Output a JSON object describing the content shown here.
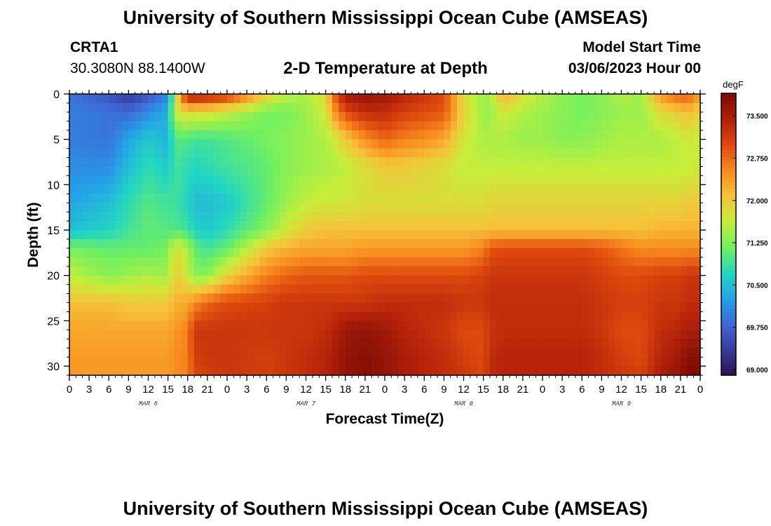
{
  "header": {
    "title": "University of Southern Mississippi Ocean Cube (AMSEAS)",
    "station_id": "CRTA1",
    "station_coords": "30.3080N  88.1400W",
    "subtitle": "2-D Temperature at Depth",
    "start_label": "Model Start Time",
    "start_value": "03/06/2023 Hour 00"
  },
  "footer": {
    "title": "University of Southern Mississippi Ocean Cube (AMSEAS)"
  },
  "chart_data": {
    "type": "heatmap",
    "title": "2-D Temperature at Depth",
    "xlabel": "Forecast Time(Z)",
    "ylabel": "Depth (ft)",
    "x_tick_labels": [
      "0",
      "3",
      "6",
      "9",
      "12",
      "15",
      "18",
      "21",
      "0",
      "3",
      "6",
      "9",
      "12",
      "15",
      "18",
      "21",
      "0",
      "3",
      "6",
      "9",
      "12",
      "15",
      "18",
      "21",
      "0",
      "3",
      "6",
      "9",
      "12",
      "15",
      "18",
      "21",
      "0"
    ],
    "date_labels": [
      "MAR 6",
      "MAR 7",
      "MAR 8",
      "MAR 9"
    ],
    "xlim_hours": [
      0,
      96
    ],
    "y_ticks": [
      0,
      5,
      10,
      15,
      20,
      25,
      30
    ],
    "ylim": [
      0,
      31
    ],
    "y_inverted": true,
    "colorbar": {
      "unit": "degF",
      "ticks": [
        "69.000",
        "69.750",
        "70.500",
        "71.250",
        "72.000",
        "72.750",
        "73.500"
      ],
      "range": [
        68.9,
        73.9
      ],
      "colors": [
        "#2a1450",
        "#3a3c9a",
        "#3f67d6",
        "#24a2e8",
        "#23d6c2",
        "#70f060",
        "#c6ee3a",
        "#f6c23a",
        "#f78a1e",
        "#de4a0e",
        "#b1200a",
        "#7d0b04"
      ]
    },
    "hours": [
      0,
      6,
      9,
      12,
      15,
      16,
      18,
      19,
      21,
      24,
      30,
      33,
      36,
      39,
      40,
      42,
      45,
      48,
      51,
      54,
      57,
      60,
      63,
      64,
      66,
      69,
      72,
      75,
      78,
      81,
      84,
      87,
      90,
      93,
      94,
      96
    ],
    "depths": [
      0,
      2,
      5,
      8,
      12,
      15,
      17,
      20,
      23,
      26,
      29,
      31
    ],
    "temps": [
      [
        69.9,
        69.6,
        69.3,
        69.6,
        70.0,
        71.5,
        73.6,
        73.6,
        73.5,
        73.3,
        72.0,
        71.6,
        71.5,
        71.8,
        72.7,
        73.6,
        73.7,
        73.6,
        73.4,
        73.2,
        73.0,
        71.8,
        71.4,
        71.4,
        72.3,
        71.8,
        71.5,
        71.3,
        71.2,
        71.3,
        71.5,
        71.4,
        72.5,
        72.9,
        72.9,
        72.4
      ],
      [
        70.0,
        69.9,
        69.8,
        70.1,
        70.4,
        71.6,
        71.9,
        71.8,
        71.8,
        71.6,
        71.2,
        71.2,
        71.4,
        71.7,
        72.3,
        73.0,
        73.3,
        73.3,
        73.1,
        73.0,
        72.9,
        71.9,
        71.4,
        71.4,
        71.7,
        71.5,
        71.4,
        71.3,
        71.2,
        71.3,
        71.4,
        71.4,
        71.8,
        72.0,
        72.1,
        71.9
      ],
      [
        70.0,
        69.9,
        70.3,
        70.6,
        70.4,
        71.0,
        71.0,
        70.9,
        70.9,
        71.0,
        71.2,
        71.3,
        71.4,
        71.5,
        71.6,
        72.0,
        72.5,
        72.8,
        72.6,
        72.5,
        72.3,
        71.7,
        71.5,
        71.5,
        71.5,
        71.4,
        71.4,
        71.3,
        71.3,
        71.4,
        71.5,
        71.5,
        71.5,
        71.6,
        71.7,
        71.6
      ],
      [
        70.1,
        70.1,
        70.5,
        70.8,
        70.6,
        70.9,
        70.8,
        70.7,
        70.8,
        70.9,
        71.1,
        71.3,
        71.4,
        71.5,
        71.5,
        71.6,
        71.8,
        72.0,
        72.0,
        71.9,
        71.8,
        71.6,
        71.6,
        71.6,
        71.6,
        71.6,
        71.6,
        71.6,
        71.6,
        71.6,
        71.6,
        71.6,
        71.6,
        71.6,
        71.6,
        71.7
      ],
      [
        70.3,
        70.5,
        70.8,
        71.0,
        70.9,
        70.9,
        70.7,
        70.5,
        70.5,
        70.6,
        71.1,
        71.4,
        71.6,
        71.7,
        71.7,
        71.7,
        71.8,
        71.8,
        71.8,
        71.8,
        71.8,
        71.8,
        71.8,
        71.9,
        71.9,
        71.9,
        71.9,
        71.9,
        71.9,
        71.9,
        71.9,
        71.9,
        71.9,
        71.9,
        72.0,
        72.0
      ],
      [
        70.5,
        70.7,
        70.9,
        71.1,
        71.0,
        71.0,
        70.9,
        70.7,
        70.6,
        70.8,
        71.3,
        71.7,
        72.0,
        72.1,
        72.1,
        72.1,
        72.1,
        72.1,
        72.1,
        72.1,
        72.1,
        72.1,
        72.1,
        72.1,
        72.1,
        72.1,
        72.1,
        72.1,
        72.1,
        72.1,
        72.1,
        72.1,
        72.2,
        72.2,
        72.2,
        72.2
      ],
      [
        71.2,
        71.1,
        71.1,
        71.1,
        71.2,
        71.8,
        71.5,
        71.1,
        70.9,
        71.1,
        72.0,
        72.2,
        72.3,
        72.3,
        72.3,
        72.3,
        72.4,
        72.4,
        72.4,
        72.4,
        72.4,
        72.4,
        72.6,
        72.9,
        73.0,
        73.0,
        73.0,
        73.0,
        73.0,
        72.9,
        72.7,
        72.5,
        72.5,
        72.5,
        72.5,
        72.5
      ],
      [
        71.6,
        71.3,
        71.4,
        71.5,
        71.4,
        72.0,
        71.7,
        71.3,
        71.3,
        71.9,
        72.6,
        72.8,
        72.9,
        72.9,
        72.9,
        72.9,
        73.0,
        73.0,
        73.0,
        73.0,
        73.0,
        73.0,
        73.1,
        73.2,
        73.2,
        73.2,
        73.2,
        73.2,
        73.2,
        73.1,
        73.0,
        73.0,
        73.1,
        73.1,
        73.2,
        73.2
      ],
      [
        72.1,
        72.1,
        72.0,
        72.0,
        72.0,
        72.2,
        72.3,
        72.5,
        72.8,
        73.0,
        73.1,
        73.2,
        73.2,
        73.2,
        73.2,
        73.2,
        73.2,
        73.3,
        73.3,
        73.3,
        73.3,
        73.2,
        73.2,
        73.3,
        73.3,
        73.3,
        73.3,
        73.3,
        73.3,
        73.2,
        73.1,
        73.1,
        73.2,
        73.2,
        73.3,
        73.3
      ],
      [
        72.3,
        72.3,
        72.3,
        72.3,
        72.3,
        72.4,
        72.6,
        73.2,
        73.2,
        73.2,
        73.2,
        73.2,
        73.2,
        73.3,
        73.4,
        73.6,
        73.7,
        73.6,
        73.4,
        73.3,
        73.2,
        73.0,
        73.0,
        73.2,
        73.3,
        73.3,
        73.3,
        73.3,
        73.3,
        73.2,
        73.0,
        73.0,
        73.3,
        73.4,
        73.5,
        73.5
      ],
      [
        72.4,
        72.4,
        72.4,
        72.4,
        72.4,
        72.5,
        72.6,
        73.1,
        73.2,
        73.2,
        73.1,
        73.2,
        73.3,
        73.4,
        73.5,
        73.7,
        73.8,
        73.7,
        73.5,
        73.4,
        73.3,
        73.1,
        73.0,
        73.3,
        73.4,
        73.4,
        73.4,
        73.4,
        73.4,
        73.3,
        73.1,
        73.0,
        73.4,
        73.6,
        73.8,
        73.8
      ],
      [
        72.4,
        72.4,
        72.4,
        72.4,
        72.4,
        72.5,
        72.6,
        73.0,
        73.1,
        73.2,
        73.1,
        73.2,
        73.3,
        73.4,
        73.5,
        73.7,
        73.8,
        73.7,
        73.5,
        73.4,
        73.3,
        73.2,
        73.0,
        73.3,
        73.4,
        73.4,
        73.4,
        73.4,
        73.4,
        73.3,
        73.2,
        73.1,
        73.5,
        73.7,
        73.9,
        73.9
      ]
    ]
  }
}
